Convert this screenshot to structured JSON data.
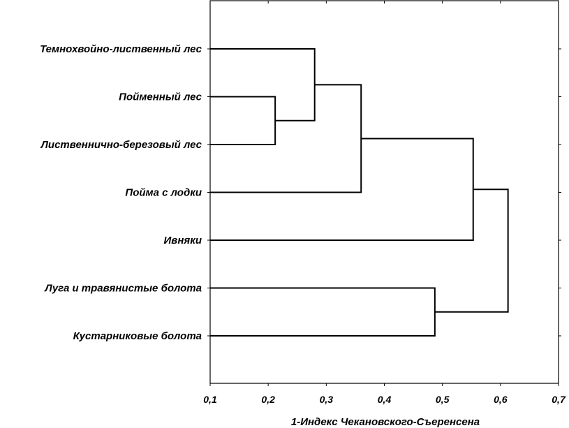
{
  "chart_data": {
    "type": "dendrogram",
    "orientation": "horizontal",
    "xlabel": "1-Индекс Чекановского-Съеренсена",
    "xlim": [
      0.1,
      0.7
    ],
    "xticks": [
      "0,1",
      "0,2",
      "0,3",
      "0,4",
      "0,5",
      "0,6",
      "0,7"
    ],
    "leaves": [
      "Темнохвойно-лиственный лес",
      "Пойменный лес",
      "Лиственнично-березовый лес",
      "Пойма с лодки",
      "Ивняки",
      "Луга и травянистые болота",
      "Кустарниковые болота"
    ],
    "merges": [
      {
        "left": 1,
        "right": 2,
        "height": 0.212
      },
      {
        "left": 0,
        "right": "m0",
        "height": 0.28
      },
      {
        "left": "m1",
        "right": 3,
        "height": 0.36
      },
      {
        "left": 5,
        "right": 6,
        "height": 0.487
      },
      {
        "left": "m2",
        "right": 4,
        "height": 0.553
      },
      {
        "left": "m4",
        "right": "m3",
        "height": 0.613
      }
    ]
  }
}
